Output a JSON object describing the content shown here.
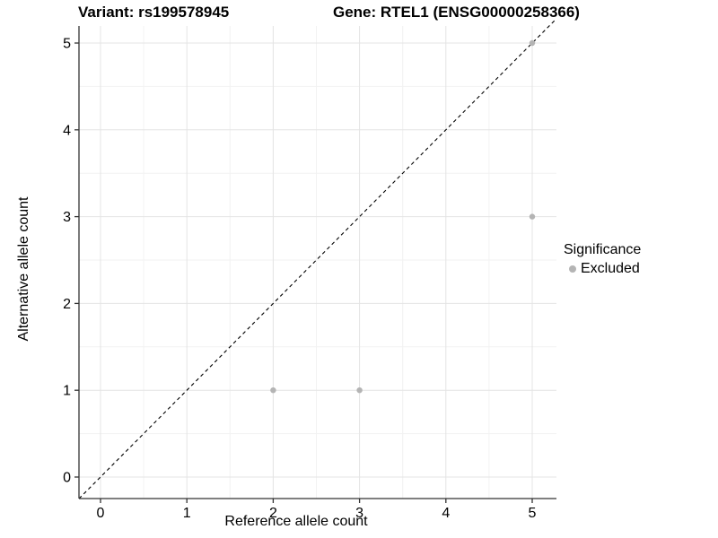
{
  "chart_data": {
    "type": "scatter",
    "title_left": "Variant: rs199578945",
    "title_right": "Gene: RTEL1 (ENSG00000258366)",
    "xlabel": "Reference allele count",
    "ylabel": "Alternative allele count",
    "x_ticks": [
      0,
      1,
      2,
      3,
      4,
      5
    ],
    "y_ticks": [
      0,
      1,
      2,
      3,
      4,
      5
    ],
    "xlim": [
      -0.25,
      5.3
    ],
    "ylim": [
      -0.25,
      5.25
    ],
    "grid": true,
    "series": [
      {
        "name": "Excluded",
        "color": "#b4b4b4",
        "points": [
          [
            2,
            1
          ],
          [
            3,
            1
          ],
          [
            5,
            3
          ],
          [
            5,
            5
          ]
        ]
      }
    ],
    "reference_line": {
      "type": "identity",
      "slope": 1,
      "intercept": 0,
      "style": "dashed",
      "color": "#000000"
    },
    "legend": {
      "title": "Significance",
      "position": "right",
      "items": [
        {
          "label": "Excluded",
          "color": "#b4b4b4"
        }
      ]
    },
    "colors": {
      "major_grid": "#e4e4e4",
      "minor_grid": "#f2f2f2",
      "axis_line": "#333333",
      "tick_text": "#000000"
    }
  }
}
